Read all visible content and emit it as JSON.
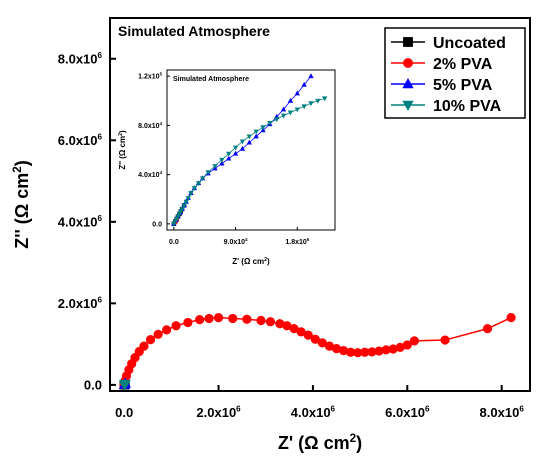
{
  "chart_data": [
    {
      "type": "scatter",
      "title": "Simulated Atmosphere",
      "xlabel": "Z' (Ω cm²)",
      "ylabel": "Z'' (Ω cm²)",
      "xlim": [
        -300000,
        8600000
      ],
      "ylim": [
        -150000,
        9000000
      ],
      "x_ticks": [
        0,
        2000000,
        4000000,
        6000000,
        8000000
      ],
      "x_tick_labels": [
        "0.0",
        "2.0x10^6",
        "4.0x10^6",
        "6.0x10^6",
        "8.0x10^6"
      ],
      "y_ticks": [
        0,
        2000000,
        4000000,
        6000000,
        8000000
      ],
      "y_tick_labels": [
        "0.0",
        "2.0x10^6",
        "4.0x10^6",
        "6.0x10^6",
        "8.0x10^6"
      ],
      "legend_position": "top-right",
      "series": [
        {
          "name": "Uncoated",
          "color": "#000000",
          "marker": "square",
          "x": [
            0,
            5000,
            10000,
            15000,
            20000
          ],
          "y": [
            0,
            3000,
            6000,
            9000,
            12000
          ]
        },
        {
          "name": "2% PVA",
          "color": "#ff0000",
          "marker": "circle",
          "x": [
            0,
            20000,
            50000,
            100000,
            160000,
            230000,
            320000,
            420000,
            560000,
            720000,
            900000,
            1100000,
            1350000,
            1600000,
            1800000,
            2000000,
            2300000,
            2600000,
            2900000,
            3100000,
            3300000,
            3450000,
            3600000,
            3750000,
            3900000,
            4050000,
            4200000,
            4350000,
            4500000,
            4650000,
            4800000,
            4950000,
            5100000,
            5250000,
            5400000,
            5550000,
            5700000,
            5850000,
            6000000,
            6150000,
            6800000,
            7700000,
            8200000
          ],
          "y": [
            0,
            100000,
            220000,
            370000,
            520000,
            670000,
            820000,
            950000,
            1110000,
            1240000,
            1350000,
            1450000,
            1530000,
            1600000,
            1630000,
            1650000,
            1630000,
            1610000,
            1580000,
            1550000,
            1500000,
            1450000,
            1380000,
            1300000,
            1220000,
            1120000,
            1030000,
            950000,
            890000,
            840000,
            800000,
            790000,
            800000,
            810000,
            830000,
            860000,
            880000,
            920000,
            980000,
            1080000,
            1100000,
            1380000,
            1650000
          ]
        },
        {
          "name": "5% PVA",
          "color": "#0000ff",
          "marker": "triangle-up",
          "x": [
            0,
            5000,
            10000,
            20000,
            30000
          ],
          "y": [
            0,
            6000,
            12000,
            24000,
            36000
          ]
        },
        {
          "name": "10% PVA",
          "color": "#008080",
          "marker": "triangle-down",
          "x": [
            0,
            5000,
            10000,
            20000,
            30000
          ],
          "y": [
            0,
            5000,
            10000,
            20000,
            30000
          ]
        }
      ]
    },
    {
      "type": "scatter",
      "title": "Simulated Atmosphere",
      "xlabel": "Z' (Ω cm²)",
      "ylabel": "Z'' (Ω cm²)",
      "xlim": [
        -10000,
        235000
      ],
      "ylim": [
        -5000,
        125000
      ],
      "x_ticks": [
        0,
        90000,
        180000
      ],
      "x_tick_labels": [
        "0.0",
        "9.0x10^4",
        "1.8x10^5"
      ],
      "y_ticks": [
        0,
        40000,
        80000,
        120000
      ],
      "y_tick_labels": [
        "0.0",
        "4.0x10^4",
        "8.0x10^4",
        "1.2x10^5"
      ],
      "series": [
        {
          "name": "Uncoated",
          "color": "#000000",
          "marker": "square",
          "x": [
            0,
            2000,
            4000,
            6000,
            8000,
            10000,
            12000,
            15000
          ],
          "y": [
            0,
            2000,
            4000,
            6000,
            8000,
            10000,
            12000,
            15000
          ]
        },
        {
          "name": "2% PVA",
          "color": "#ff0000",
          "marker": "circle",
          "x": [
            500,
            1000,
            1500,
            2000,
            3000,
            4000
          ],
          "y": [
            300,
            700,
            1100,
            1500,
            2300,
            3000
          ]
        },
        {
          "name": "5% PVA",
          "color": "#0000ff",
          "marker": "triangle-up",
          "x": [
            0,
            3000,
            6000,
            9000,
            12000,
            15000,
            18000,
            21000,
            25000,
            30000,
            36000,
            42000,
            50000,
            60000,
            70000,
            80000,
            90000,
            100000,
            110000,
            120000,
            130000,
            140000,
            150000,
            160000,
            170000,
            180000,
            190000,
            200000
          ],
          "y": [
            0,
            3000,
            6000,
            9000,
            12000,
            15000,
            18000,
            21000,
            25000,
            29000,
            33000,
            37000,
            41000,
            45000,
            49000,
            53000,
            57000,
            61000,
            66000,
            71000,
            76000,
            81000,
            87000,
            93000,
            100000,
            106000,
            113000,
            120000
          ]
        },
        {
          "name": "10% PVA",
          "color": "#008080",
          "marker": "triangle-down",
          "x": [
            0,
            2000,
            4000,
            6000,
            8000,
            10000,
            12000,
            15000,
            18000,
            21000,
            25000,
            30000,
            36000,
            42000,
            50000,
            60000,
            70000,
            80000,
            90000,
            100000,
            110000,
            120000,
            130000,
            140000,
            150000,
            160000,
            170000,
            180000,
            190000,
            200000,
            210000,
            220000
          ],
          "y": [
            0,
            2000,
            4000,
            6000,
            8000,
            10000,
            12000,
            15000,
            18000,
            21000,
            25000,
            29000,
            33000,
            37000,
            42000,
            47000,
            52000,
            57000,
            62000,
            67000,
            71000,
            75000,
            78500,
            82000,
            85000,
            88000,
            90500,
            93000,
            95500,
            98000,
            100000,
            102000
          ]
        }
      ]
    }
  ]
}
